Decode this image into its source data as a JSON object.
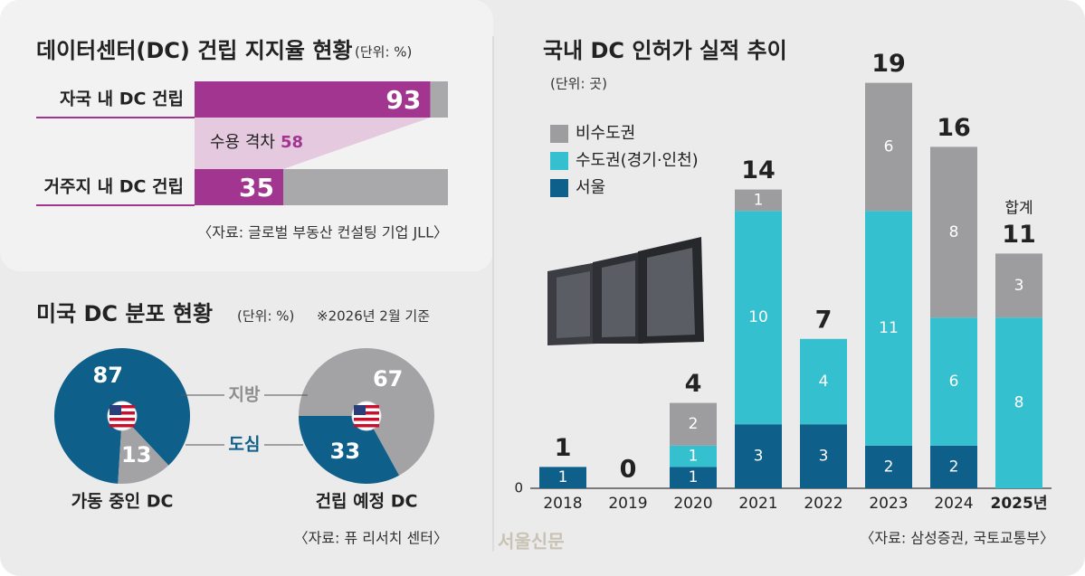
{
  "chart_data": [
    {
      "type": "hbar",
      "title": "데이터센터(DC) 건립 지지율 현황",
      "unit": "(단위: %)",
      "categories": [
        "자국 내 DC 건립",
        "거주지 내 DC 건립"
      ],
      "values": [
        93,
        35
      ],
      "color": "#a2358f",
      "track_color": "#a9a9ab",
      "xlim": [
        0,
        100
      ],
      "gap": {
        "label": "수용 격차",
        "value": 58
      },
      "source": "〈자료: 글로벌 부동산 컨설팅 기업 JLL〉"
    },
    {
      "type": "pie",
      "title": "미국 DC 분포 현황",
      "unit": "(단위: %)",
      "note": "※2026년 2월 기준",
      "labels": [
        "도심",
        "지방"
      ],
      "colors": [
        "#0e5f8a",
        "#a3a3a5"
      ],
      "pies": [
        {
          "name": "가동 중인 DC",
          "values": [
            87,
            13
          ]
        },
        {
          "name": "건립 예정 DC",
          "values": [
            33,
            67
          ]
        }
      ],
      "source": "〈자료: 퓨 리서치 센터〉"
    },
    {
      "type": "stacked_bar",
      "title": "국내 DC 인허가 실적 추이",
      "unit": "(단위: 곳)",
      "categories": [
        "2018",
        "2019",
        "2020",
        "2021",
        "2022",
        "2023",
        "2024",
        "2025년"
      ],
      "series": [
        {
          "name": "서울",
          "color": "#0e5f8a",
          "values": [
            1,
            0,
            1,
            3,
            3,
            2,
            2,
            0
          ]
        },
        {
          "name": "수도권(경기·인천)",
          "color": "#35c0d0",
          "values": [
            0,
            0,
            1,
            10,
            4,
            11,
            6,
            8
          ]
        },
        {
          "name": "비수도권",
          "color": "#9d9d9f",
          "values": [
            0,
            0,
            2,
            1,
            0,
            6,
            8,
            3
          ]
        }
      ],
      "totals": [
        1,
        0,
        4,
        14,
        7,
        19,
        16,
        11
      ],
      "total_note": "합계",
      "ylim": [
        0,
        20
      ],
      "yticks": [
        0
      ],
      "source": "〈자료: 삼성증권, 국토교통부〉"
    }
  ],
  "watermark": "서울신문"
}
